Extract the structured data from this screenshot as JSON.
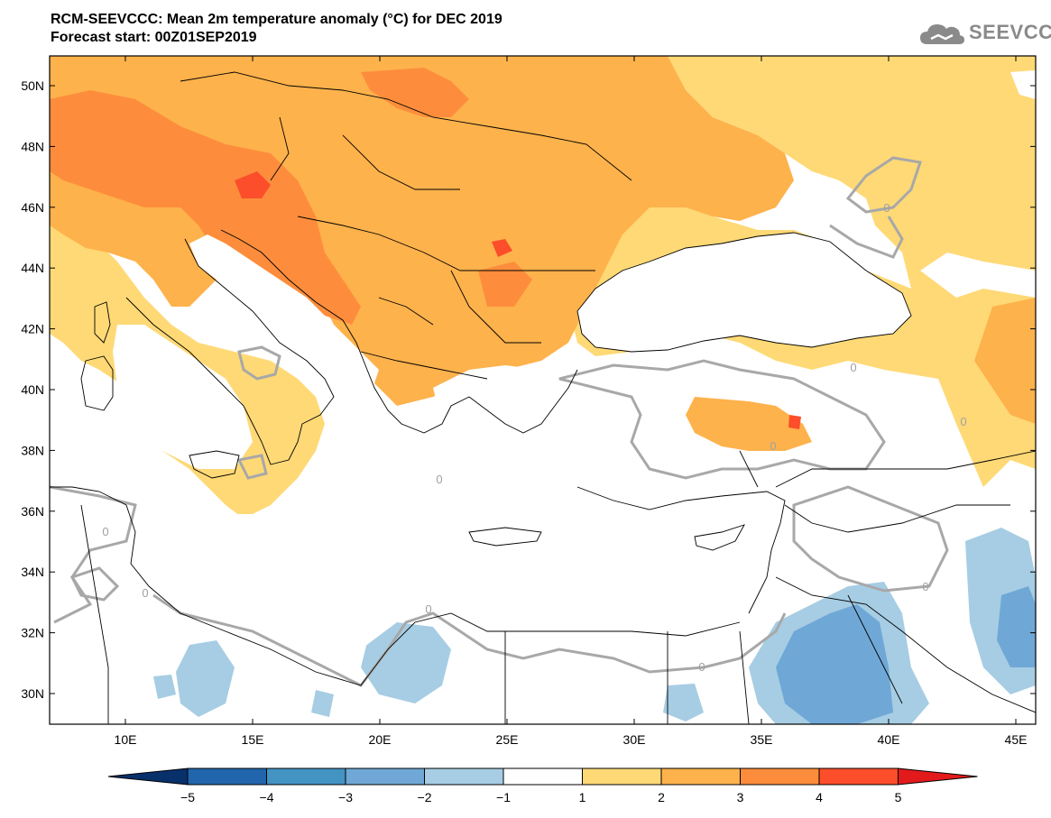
{
  "title": {
    "line1": "RCM-SEEVCCC: Mean 2m temperature anomaly (°C) for DEC 2019",
    "line2": "Forecast start: 00Z01SEP2019"
  },
  "logo": {
    "text": "SEEVCCC",
    "icon": "cloud-icon"
  },
  "map": {
    "lat_labels": [
      "50N",
      "48N",
      "46N",
      "44N",
      "42N",
      "40N",
      "38N",
      "36N",
      "34N",
      "32N",
      "30N"
    ],
    "lon_labels": [
      "10E",
      "15E",
      "20E",
      "25E",
      "30E",
      "35E",
      "40E",
      "45E"
    ],
    "contour_label": "0"
  },
  "colorbar": {
    "ticks": [
      "−5",
      "−4",
      "−3",
      "−2",
      "−1",
      "1",
      "2",
      "3",
      "4",
      "5"
    ],
    "colors": [
      "#08306b",
      "#2166ac",
      "#4393c3",
      "#6fa8d6",
      "#a6cde3",
      "#ffffff",
      "#fed976",
      "#feb24c",
      "#fd8d3c",
      "#fc4e2a",
      "#e31a1c"
    ]
  },
  "palette": {
    "level1": "#fed976",
    "level2": "#feb24c",
    "level3": "#fd8d3c",
    "level4": "#fc4e2a",
    "neg1": "#a6cde3",
    "neg2": "#6fa8d6",
    "contour": "#a8a8a8",
    "border": "#000000"
  }
}
